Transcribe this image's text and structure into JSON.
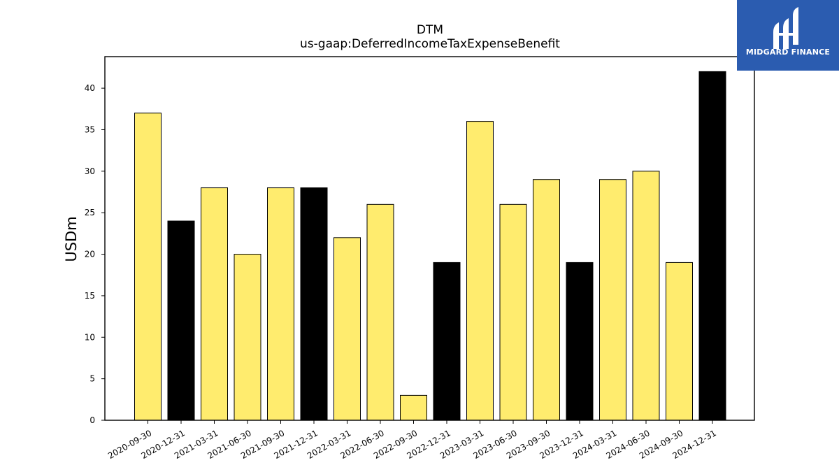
{
  "chart_data": {
    "type": "bar",
    "title": "DTM",
    "subtitle": "us-gaap:DeferredIncomeTaxExpenseBenefit",
    "ylabel": "USDm",
    "xlabel": "",
    "ylim": [
      0,
      43.8
    ],
    "yticks": [
      0,
      5,
      10,
      15,
      20,
      25,
      30,
      35,
      40
    ],
    "grid": false,
    "categories": [
      "2020-09-30",
      "2020-12-31",
      "2021-03-31",
      "2021-06-30",
      "2021-09-30",
      "2021-12-31",
      "2022-03-31",
      "2022-06-30",
      "2022-09-30",
      "2022-12-31",
      "2023-03-31",
      "2023-06-30",
      "2023-09-30",
      "2023-12-31",
      "2024-03-31",
      "2024-06-30",
      "2024-09-30",
      "2024-12-31"
    ],
    "values": [
      37,
      24,
      28,
      20,
      28,
      28,
      22,
      26,
      3,
      19,
      36,
      26,
      29,
      19,
      29,
      30,
      19,
      42
    ],
    "bar_colors": [
      "#ffec6e",
      "#000000",
      "#ffec6e",
      "#ffec6e",
      "#ffec6e",
      "#000000",
      "#ffec6e",
      "#ffec6e",
      "#ffec6e",
      "#000000",
      "#ffec6e",
      "#ffec6e",
      "#ffec6e",
      "#000000",
      "#ffec6e",
      "#ffec6e",
      "#ffec6e",
      "#000000"
    ]
  },
  "logo": {
    "text": "MIDGARD FINANCE",
    "icon": "midgard-logo-icon",
    "background": "#2b5cb0"
  }
}
